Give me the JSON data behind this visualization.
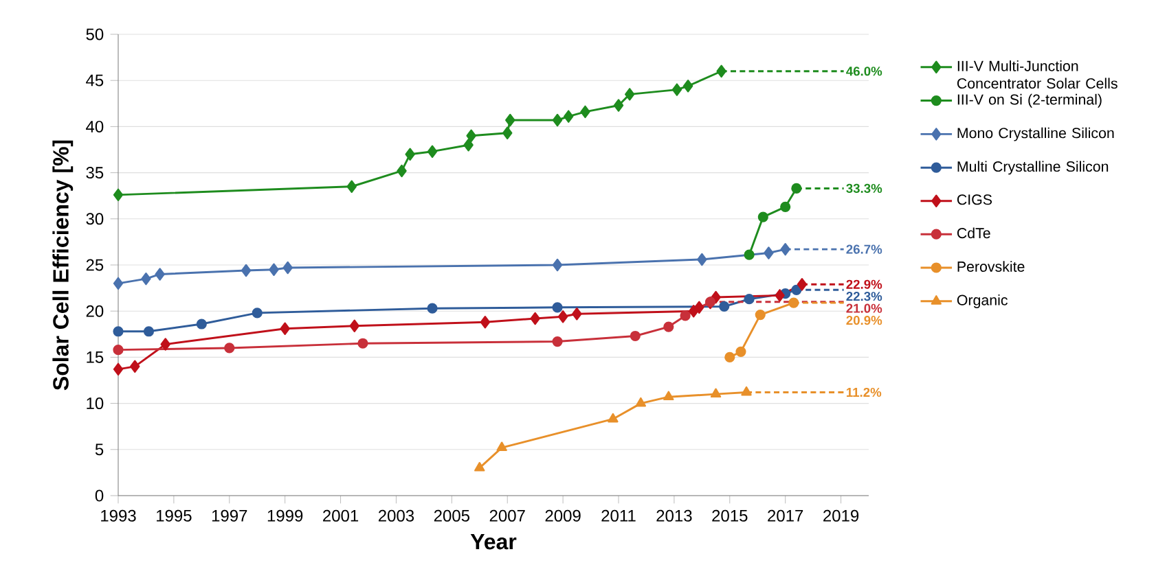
{
  "chart_data": {
    "type": "line",
    "xlabel": "Year",
    "ylabel": "Solar Cell Efficiency [%]",
    "xlim": [
      1993,
      2020
    ],
    "ylim": [
      0,
      50
    ],
    "xticks": [
      1993,
      1995,
      1997,
      1999,
      2001,
      2003,
      2005,
      2007,
      2009,
      2011,
      2013,
      2015,
      2017,
      2019
    ],
    "yticks": [
      0,
      5,
      10,
      15,
      20,
      25,
      30,
      35,
      40,
      45,
      50
    ],
    "grid": "y",
    "legend": "right",
    "line_style": "solid",
    "series": [
      {
        "name": "III-V Multi-Junction Concentrator Solar Cells",
        "color": "#1e8c1e",
        "marker": "diamond",
        "x": [
          1993,
          2001.4,
          2003.2,
          2003.5,
          2004.3,
          2005.6,
          2005.7,
          2007,
          2007.1,
          2008.8,
          2009.2,
          2009.8,
          2011,
          2011.4,
          2013.1,
          2013.5,
          2014.7
        ],
        "values": [
          32.6,
          33.5,
          35.2,
          37,
          37.3,
          38,
          39,
          39.3,
          40.7,
          40.7,
          41.1,
          41.6,
          42.3,
          43.5,
          44,
          44.4,
          46
        ]
      },
      {
        "name": "III-V on Si (2-terminal)",
        "color": "#1e8c1e",
        "marker": "circle",
        "x": [
          2015.7,
          2016.2,
          2017,
          2017.4
        ],
        "values": [
          26.1,
          30.2,
          31.3,
          33.3
        ]
      },
      {
        "name": "Mono Crystalline Silicon",
        "color": "#4a72ae",
        "marker": "diamond",
        "x": [
          1993,
          1994,
          1994.5,
          1997.6,
          1998.6,
          1999.1,
          2008.8,
          2014,
          2016.4,
          2017
        ],
        "values": [
          23,
          23.5,
          24,
          24.4,
          24.5,
          24.7,
          25,
          25.6,
          26.3,
          26.7
        ]
      },
      {
        "name": "Multi Crystalline Silicon",
        "color": "#2f5c9a",
        "marker": "circle",
        "x": [
          1993,
          1994.1,
          1996,
          1998,
          2004.3,
          2008.8,
          2014.8,
          2015.7,
          2017,
          2017.4
        ],
        "values": [
          17.8,
          17.8,
          18.6,
          19.8,
          20.3,
          20.4,
          20.5,
          21.3,
          21.9,
          22.3
        ]
      },
      {
        "name": "CIGS",
        "color": "#c0101a",
        "marker": "diamond",
        "x": [
          1993,
          1993.6,
          1994.7,
          1999,
          2001.5,
          2006.2,
          2008,
          2009,
          2009.5,
          2013.7,
          2013.9,
          2014.3,
          2014.5,
          2016.8,
          2017.6
        ],
        "values": [
          13.7,
          14,
          16.4,
          18.1,
          18.4,
          18.8,
          19.2,
          19.4,
          19.7,
          20,
          20.4,
          20.9,
          21.5,
          21.7,
          22.9
        ]
      },
      {
        "name": "CdTe",
        "color": "#c8303a",
        "marker": "circle",
        "x": [
          1993,
          1997,
          2001.8,
          2008.8,
          2011.6,
          2012.8,
          2013.4,
          2014.3
        ],
        "values": [
          15.8,
          16,
          16.5,
          16.7,
          17.3,
          18.3,
          19.5,
          21.0
        ]
      },
      {
        "name": "Perovskite",
        "color": "#e8902a",
        "marker": "circle",
        "x": [
          2015,
          2015.4,
          2016.1,
          2017.3
        ],
        "values": [
          15,
          15.6,
          19.6,
          20.9
        ]
      },
      {
        "name": "Organic",
        "color": "#e8902a",
        "marker": "triangle",
        "x": [
          2006,
          2006.8,
          2010.8,
          2011.8,
          2012.8,
          2014.5,
          2015.6
        ],
        "values": [
          3,
          5.2,
          8.3,
          10,
          10.7,
          11,
          11.2
        ]
      },
      {
        "color": "#1e8c1e",
        "marker": "none",
        "line_style": "dashed",
        "x": [
          2014.7,
          2019.1
        ],
        "values": [
          46,
          46
        ]
      },
      {
        "color": "#1e8c1e",
        "marker": "none",
        "line_style": "dashed",
        "x": [
          2017.4,
          2019.1
        ],
        "values": [
          33.3,
          33.3
        ]
      },
      {
        "color": "#4a72ae",
        "marker": "none",
        "line_style": "dashed",
        "x": [
          2017,
          2019.1
        ],
        "values": [
          26.7,
          26.7
        ]
      },
      {
        "color": "#c0101a",
        "marker": "none",
        "line_style": "dashed",
        "x": [
          2017.6,
          2019.1
        ],
        "values": [
          22.9,
          22.9
        ]
      },
      {
        "color": "#2f5c9a",
        "marker": "none",
        "line_style": "dashed",
        "x": [
          2017.4,
          2019.1
        ],
        "values": [
          22.3,
          22.3
        ]
      },
      {
        "color": "#c8303a",
        "marker": "none",
        "line_style": "dashed",
        "x": [
          2014.3,
          2019.1
        ],
        "values": [
          21.0,
          21.0
        ]
      },
      {
        "color": "#e8902a",
        "marker": "none",
        "line_style": "dashed",
        "x": [
          2017.3,
          2019.1
        ],
        "values": [
          20.9,
          20.9
        ]
      },
      {
        "color": "#e8902a",
        "marker": "none",
        "line_style": "dashed",
        "x": [
          2015.6,
          2019.1
        ],
        "values": [
          11.2,
          11.2
        ]
      }
    ],
    "annotations": [
      "46.0%",
      "33.3%",
      "26.7%",
      "22.9%",
      "22.3%",
      "21.0%",
      "20.9%",
      "11.2%"
    ]
  }
}
